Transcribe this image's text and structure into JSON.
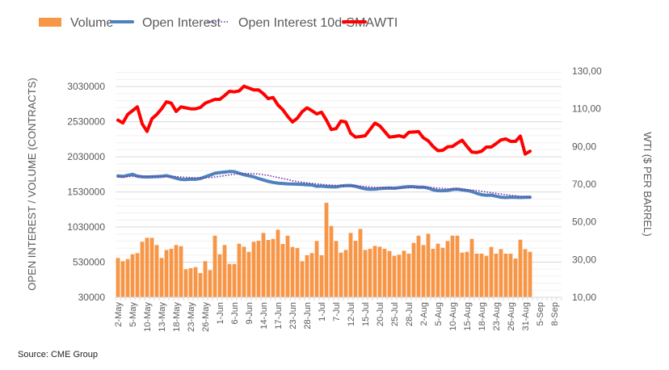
{
  "chart_data": {
    "type": "bar+line",
    "title": "",
    "source": "Source: CME Group",
    "legend": {
      "placement": "top",
      "entries": [
        "Volume",
        "Open Interest",
        "Open Interest 10d-SMA",
        "WTI"
      ]
    },
    "colors": {
      "volume": "#F79646",
      "open_interest": "#4F81BD",
      "sma": "#7030A0",
      "wti": "#FF0000",
      "grid": "#E6E6E6"
    },
    "ylabel_left": "OPEN INTEREST / VOLUME (CONTRACTS)",
    "ylabel_right": "WTI ($ PER BARREL)",
    "ylim_left": [
      30000,
      3250000
    ],
    "yticks_left": [
      "30000",
      "530000",
      "1030000",
      "1530000",
      "2030000",
      "2530000",
      "3030000"
    ],
    "ylim_right": [
      10,
      130
    ],
    "yticks_right": [
      "10,00",
      "30,00",
      "50,00",
      "70,00",
      "90,00",
      "110,00",
      "130,00"
    ],
    "grid": true,
    "category_count": 92,
    "x_tick_labels": [
      "2-May",
      "5-May",
      "10-May",
      "13-May",
      "18-May",
      "23-May",
      "26-May",
      "1-Jun",
      "6-Jun",
      "9-Jun",
      "14-Jun",
      "17-Jun",
      "23-Jun",
      "28-Jun",
      "1-Jul",
      "7-Jul",
      "12-Jul",
      "15-Jul",
      "20-Jul",
      "25-Jul",
      "28-Jul",
      "2-Aug",
      "5-Aug",
      "10-Aug",
      "15-Aug",
      "18-Aug",
      "23-Aug",
      "26-Aug",
      "31-Aug",
      "5-Sep",
      "8-Sep"
    ],
    "series": [
      {
        "name": "Volume",
        "type": "bar",
        "axis": "left",
        "values": [
          590000,
          544000,
          574000,
          643000,
          659000,
          820000,
          877000,
          877000,
          774000,
          590000,
          704000,
          720000,
          774000,
          758000,
          429000,
          444000,
          459000,
          375000,
          544000,
          417000,
          907000,
          643000,
          774000,
          505000,
          505000,
          793000,
          750000,
          677000,
          820000,
          835000,
          946000,
          846000,
          861000,
          992000,
          789000,
          907000,
          746000,
          731000,
          544000,
          628000,
          659000,
          831000,
          628000,
          1375000,
          1045000,
          831000,
          666000,
          704000,
          946000,
          835000,
          1003000,
          704000,
          720000,
          762000,
          750000,
          720000,
          689000,
          620000,
          636000,
          693000,
          651000,
          804000,
          907000,
          774000,
          934000,
          720000,
          793000,
          735000,
          831000,
          907000,
          907000,
          666000,
          677000,
          861000,
          651000,
          651000,
          620000,
          746000,
          651000,
          716000,
          651000,
          651000,
          582000,
          850000,
          716000,
          677000
        ]
      },
      {
        "name": "Open Interest",
        "type": "line",
        "axis": "left",
        "values": [
          1757000,
          1750000,
          1765000,
          1780000,
          1755000,
          1745000,
          1742000,
          1745000,
          1748000,
          1752000,
          1762000,
          1745000,
          1725000,
          1708000,
          1705000,
          1712000,
          1710000,
          1720000,
          1745000,
          1770000,
          1795000,
          1805000,
          1812000,
          1820000,
          1818000,
          1795000,
          1775000,
          1760000,
          1745000,
          1720000,
          1700000,
          1680000,
          1665000,
          1655000,
          1650000,
          1645000,
          1643000,
          1640000,
          1638000,
          1632000,
          1628000,
          1610000,
          1612000,
          1605000,
          1603000,
          1601000,
          1615000,
          1620000,
          1622000,
          1610000,
          1590000,
          1575000,
          1567000,
          1570000,
          1578000,
          1583000,
          1585000,
          1582000,
          1590000,
          1600000,
          1606000,
          1604000,
          1598000,
          1597000,
          1585000,
          1560000,
          1548000,
          1547000,
          1550000,
          1565000,
          1570000,
          1560000,
          1550000,
          1535000,
          1510000,
          1490000,
          1482000,
          1485000,
          1470000,
          1455000,
          1450000,
          1455000,
          1452000,
          1450000,
          1452000,
          1455000
        ]
      },
      {
        "name": "Open Interest 10d-SMA",
        "type": "line",
        "axis": "left",
        "values": [
          1745000,
          1745000,
          1748000,
          1752000,
          1752000,
          1750000,
          1750000,
          1752000,
          1752000,
          1752000,
          1750000,
          1750000,
          1748000,
          1742000,
          1738000,
          1735000,
          1731000,
          1728000,
          1730000,
          1735000,
          1742000,
          1752000,
          1762000,
          1772000,
          1782000,
          1790000,
          1794000,
          1792000,
          1790000,
          1785000,
          1775000,
          1765000,
          1750000,
          1735000,
          1720000,
          1705000,
          1690000,
          1678000,
          1668000,
          1660000,
          1652000,
          1645000,
          1638000,
          1632000,
          1627000,
          1622000,
          1620000,
          1618000,
          1617000,
          1615000,
          1612000,
          1606000,
          1600000,
          1595000,
          1592000,
          1590000,
          1588000,
          1585000,
          1584000,
          1586000,
          1590000,
          1593000,
          1595000,
          1596000,
          1595000,
          1590000,
          1585000,
          1580000,
          1575000,
          1570000,
          1565000,
          1562000,
          1560000,
          1557000,
          1550000,
          1540000,
          1530000,
          1520000,
          1510000,
          1500000,
          1490000,
          1482000,
          1475000,
          1468000,
          1462000,
          1458000
        ]
      },
      {
        "name": "WTI",
        "type": "line",
        "axis": "right",
        "values": [
          104,
          102.5,
          107,
          109,
          111,
          102,
          98,
          104.7,
          107,
          110,
          113.7,
          113,
          108.6,
          111,
          110.5,
          110,
          110,
          110.7,
          113,
          114,
          115,
          115,
          117,
          119.3,
          119,
          119.5,
          122,
          121,
          120,
          120,
          118,
          115.4,
          116,
          112,
          109.5,
          106,
          103,
          105,
          108.5,
          110.5,
          109,
          107.3,
          108.2,
          104,
          99,
          99.5,
          103.5,
          103,
          97,
          95,
          95.3,
          95.7,
          99,
          102.4,
          101,
          98,
          95,
          95.3,
          95.7,
          95,
          97.5,
          97.7,
          97.9,
          94.6,
          93,
          90,
          87.8,
          88,
          89.8,
          90,
          91.8,
          93.3,
          90,
          87,
          86.8,
          87.5,
          89.7,
          89.7,
          91.5,
          93.5,
          94,
          92.7,
          92.7,
          95.5,
          86,
          87.5
        ]
      }
    ]
  }
}
